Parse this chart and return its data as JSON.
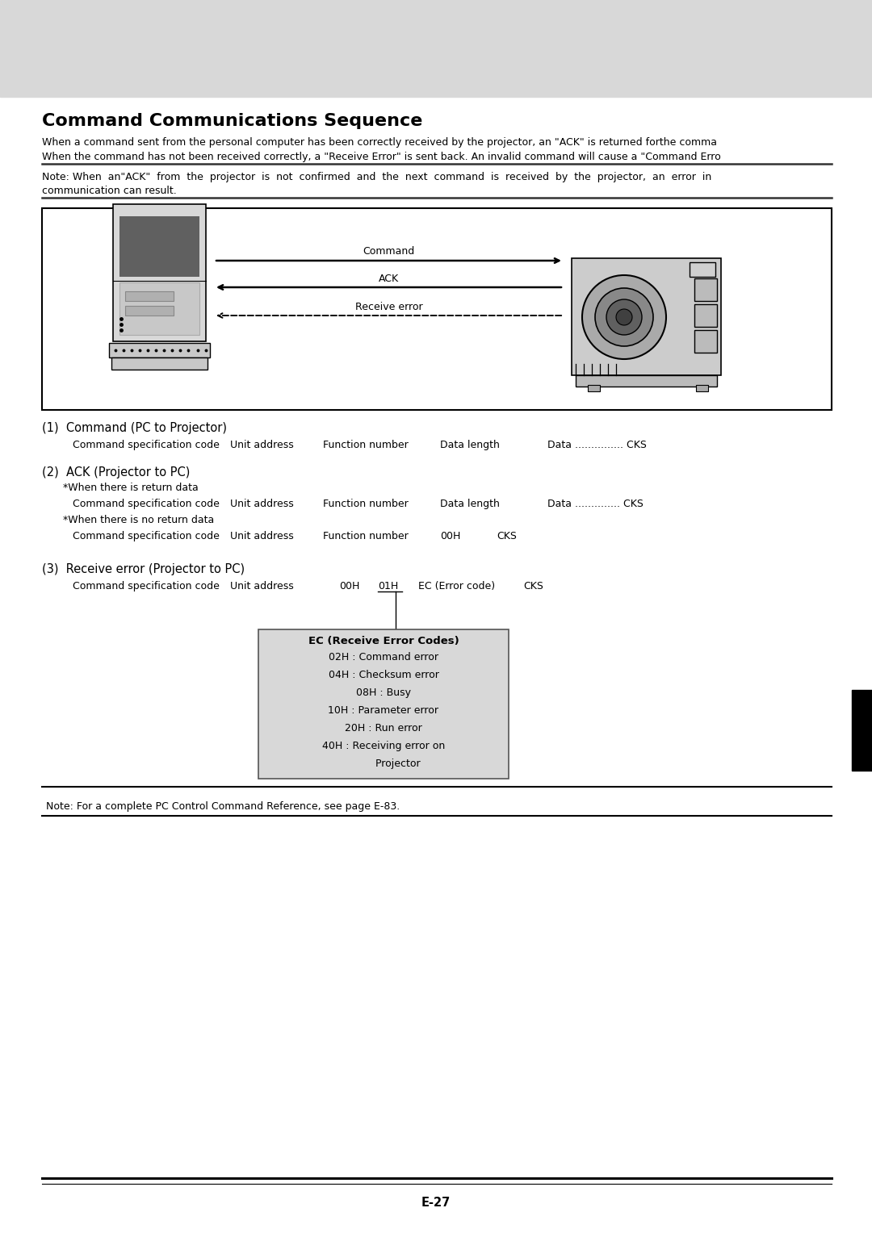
{
  "bg_top": "#d8d8d8",
  "bg_page": "#ffffff",
  "title": "Command Communications Sequence",
  "intro_line1": "When a command sent from the personal computer has been correctly received by the projector, an \"ACK\" is returned forthe comma",
  "intro_line2": "When the command has not been received correctly, a \"Receive Error\" is sent back. An invalid command will cause a \"Command Erro",
  "note_line1": "Note: When  an\"ACK\"  from  the  projector  is  not  confirmed  and  the  next  command  is  received  by  the  projector,  an  error  in",
  "note_line2": "communication can result.",
  "section1_title": "(1)  Command (PC to Projector)",
  "section2_title": "(2)  ACK (Projector to PC)",
  "section3_title": "(3)  Receive error (Projector to PC)",
  "ec_box_title": "EC (Receive Error Codes)",
  "ec_box_lines": [
    "02H : Command error",
    "04H : Checksum error",
    "08H : Busy",
    "10H : Parameter error",
    "20H : Run error",
    "40H : Receiving error on",
    "         Projector"
  ],
  "footer_note": "Note: For a complete PC Control Command Reference, see page E-83.",
  "page_number": "E-27",
  "diagram_label_command": "Command",
  "diagram_label_ack": "ACK",
  "diagram_label_receive_error": "Receive error"
}
